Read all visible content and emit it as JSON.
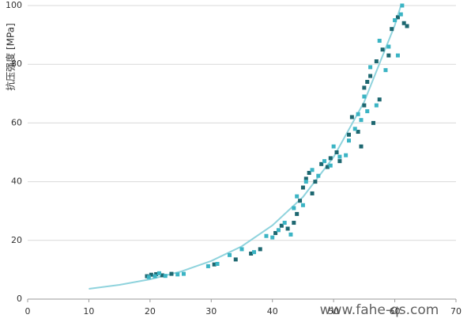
{
  "chart_data": {
    "type": "scatter",
    "y_label": "抗压强度 [MPa]",
    "watermark": "www.fahe-qs.com",
    "xlim": [
      0,
      70
    ],
    "xticks": [
      0,
      10,
      20,
      30,
      40,
      50,
      60,
      70
    ],
    "ylim": [
      0,
      100
    ],
    "yticks": [
      0,
      20,
      40,
      60,
      80,
      100
    ],
    "grid": true,
    "series": [
      {
        "color": "#1d6770",
        "x": [
          19.5,
          20.2,
          21,
          22,
          23.5,
          30.5,
          34,
          36.5,
          38,
          40.5,
          41.5,
          42.5,
          43.5,
          44,
          44.5,
          45,
          45.5,
          46,
          46.5,
          47,
          48,
          49,
          49.5,
          50.5,
          51,
          52.5,
          53,
          54,
          54.5,
          55,
          55.5,
          56,
          56.5,
          57,
          58,
          59,
          59.5,
          60.5,
          61.5,
          62,
          57.5,
          55
        ],
        "values": [
          7.8,
          8.3,
          8.5,
          8.1,
          8.6,
          11.8,
          13.5,
          15.5,
          17,
          22.5,
          25,
          24,
          26,
          29,
          33.5,
          38,
          41,
          43,
          36,
          40,
          46,
          45,
          48,
          50,
          47,
          56,
          62,
          57,
          52,
          66,
          74,
          76,
          60,
          81,
          85,
          83,
          92,
          96,
          94,
          93,
          68,
          72
        ]
      },
      {
        "color": "#3bb4c4",
        "x": [
          19.8,
          20.8,
          21.5,
          22.5,
          24.5,
          25.5,
          29.5,
          31,
          33,
          35,
          37,
          39,
          40,
          41,
          42,
          43,
          43.5,
          44,
          45,
          45.5,
          46.5,
          47.5,
          48.5,
          49.5,
          50,
          51,
          52,
          52.5,
          53.5,
          54,
          54.5,
          55,
          55.5,
          56,
          57,
          57.5,
          58.5,
          59,
          60,
          61,
          61.2,
          60.5
        ],
        "values": [
          7.5,
          7.8,
          8.8,
          7.9,
          8.4,
          8.6,
          11.2,
          12,
          15,
          17,
          16,
          21.5,
          21,
          23.5,
          26,
          22,
          31,
          35,
          32,
          40,
          44,
          42,
          47,
          45.5,
          52,
          48.5,
          49,
          54,
          58,
          63,
          61,
          69,
          64,
          79,
          66,
          88,
          78,
          86,
          95,
          97,
          100,
          83
        ]
      }
    ],
    "fit": {
      "color": "#8fd3dd",
      "x": [
        10,
        15,
        20,
        25,
        30,
        35,
        40,
        45,
        50,
        55,
        60,
        61
      ],
      "values": [
        3.5,
        4.85,
        6.74,
        9.36,
        13.0,
        18.0,
        25.1,
        34.8,
        48.4,
        67.2,
        93.3,
        100
      ]
    }
  }
}
